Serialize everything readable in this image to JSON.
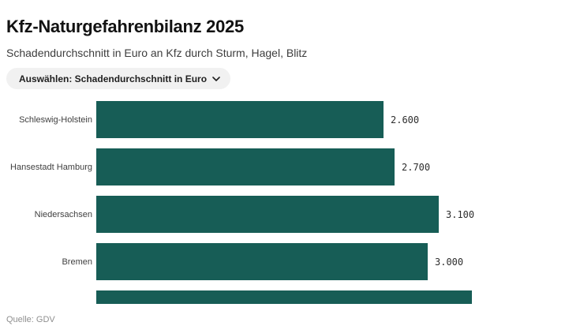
{
  "header": {
    "title": "Kfz-Naturgefahrenbilanz 2025",
    "subtitle": "Schadendurchschnitt in Euro an Kfz durch Sturm, Hagel, Blitz"
  },
  "controls": {
    "select_label": "Auswählen: Schadendurchschnitt in Euro",
    "select_icon": "chevron-down"
  },
  "chart_data": {
    "type": "bar",
    "orientation": "horizontal",
    "title": "Kfz-Naturgefahrenbilanz 2025",
    "subtitle": "Schadendurchschnitt in Euro an Kfz durch Sturm, Hagel, Blitz",
    "unit": "Euro",
    "categories": [
      "Schleswig-Holstein",
      "Hansestadt Hamburg",
      "Niedersachsen",
      "Bremen"
    ],
    "values": [
      2600,
      2700,
      3100,
      3000
    ],
    "value_labels": [
      "2.600",
      "2.700",
      "3.100",
      "3.000"
    ],
    "partial_bar": {
      "value": 3400,
      "label_visible": false
    },
    "xlim": [
      0,
      3400
    ],
    "bar_color": "#175d56",
    "grid": false,
    "legend": false
  },
  "footer": {
    "source": "Quelle: GDV"
  }
}
